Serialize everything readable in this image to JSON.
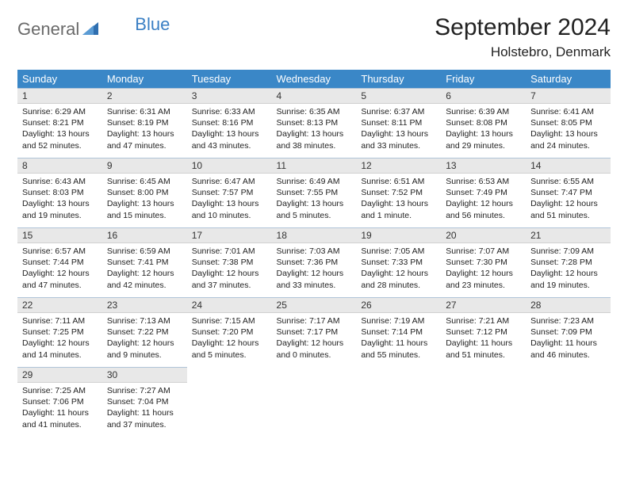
{
  "logo": {
    "part1": "General",
    "part2": "Blue"
  },
  "title": "September 2024",
  "location": "Holstebro, Denmark",
  "colors": {
    "header_bg": "#3a87c7",
    "header_fg": "#ffffff",
    "daynum_bg": "#e8e8e8",
    "row_border": "#b0c4d8",
    "logo_gray": "#6a6a6a",
    "logo_blue": "#3a7fc4"
  },
  "weekdays": [
    "Sunday",
    "Monday",
    "Tuesday",
    "Wednesday",
    "Thursday",
    "Friday",
    "Saturday"
  ],
  "days": [
    {
      "n": "1",
      "sunrise": "Sunrise: 6:29 AM",
      "sunset": "Sunset: 8:21 PM",
      "day1": "Daylight: 13 hours",
      "day2": "and 52 minutes."
    },
    {
      "n": "2",
      "sunrise": "Sunrise: 6:31 AM",
      "sunset": "Sunset: 8:19 PM",
      "day1": "Daylight: 13 hours",
      "day2": "and 47 minutes."
    },
    {
      "n": "3",
      "sunrise": "Sunrise: 6:33 AM",
      "sunset": "Sunset: 8:16 PM",
      "day1": "Daylight: 13 hours",
      "day2": "and 43 minutes."
    },
    {
      "n": "4",
      "sunrise": "Sunrise: 6:35 AM",
      "sunset": "Sunset: 8:13 PM",
      "day1": "Daylight: 13 hours",
      "day2": "and 38 minutes."
    },
    {
      "n": "5",
      "sunrise": "Sunrise: 6:37 AM",
      "sunset": "Sunset: 8:11 PM",
      "day1": "Daylight: 13 hours",
      "day2": "and 33 minutes."
    },
    {
      "n": "6",
      "sunrise": "Sunrise: 6:39 AM",
      "sunset": "Sunset: 8:08 PM",
      "day1": "Daylight: 13 hours",
      "day2": "and 29 minutes."
    },
    {
      "n": "7",
      "sunrise": "Sunrise: 6:41 AM",
      "sunset": "Sunset: 8:05 PM",
      "day1": "Daylight: 13 hours",
      "day2": "and 24 minutes."
    },
    {
      "n": "8",
      "sunrise": "Sunrise: 6:43 AM",
      "sunset": "Sunset: 8:03 PM",
      "day1": "Daylight: 13 hours",
      "day2": "and 19 minutes."
    },
    {
      "n": "9",
      "sunrise": "Sunrise: 6:45 AM",
      "sunset": "Sunset: 8:00 PM",
      "day1": "Daylight: 13 hours",
      "day2": "and 15 minutes."
    },
    {
      "n": "10",
      "sunrise": "Sunrise: 6:47 AM",
      "sunset": "Sunset: 7:57 PM",
      "day1": "Daylight: 13 hours",
      "day2": "and 10 minutes."
    },
    {
      "n": "11",
      "sunrise": "Sunrise: 6:49 AM",
      "sunset": "Sunset: 7:55 PM",
      "day1": "Daylight: 13 hours",
      "day2": "and 5 minutes."
    },
    {
      "n": "12",
      "sunrise": "Sunrise: 6:51 AM",
      "sunset": "Sunset: 7:52 PM",
      "day1": "Daylight: 13 hours",
      "day2": "and 1 minute."
    },
    {
      "n": "13",
      "sunrise": "Sunrise: 6:53 AM",
      "sunset": "Sunset: 7:49 PM",
      "day1": "Daylight: 12 hours",
      "day2": "and 56 minutes."
    },
    {
      "n": "14",
      "sunrise": "Sunrise: 6:55 AM",
      "sunset": "Sunset: 7:47 PM",
      "day1": "Daylight: 12 hours",
      "day2": "and 51 minutes."
    },
    {
      "n": "15",
      "sunrise": "Sunrise: 6:57 AM",
      "sunset": "Sunset: 7:44 PM",
      "day1": "Daylight: 12 hours",
      "day2": "and 47 minutes."
    },
    {
      "n": "16",
      "sunrise": "Sunrise: 6:59 AM",
      "sunset": "Sunset: 7:41 PM",
      "day1": "Daylight: 12 hours",
      "day2": "and 42 minutes."
    },
    {
      "n": "17",
      "sunrise": "Sunrise: 7:01 AM",
      "sunset": "Sunset: 7:38 PM",
      "day1": "Daylight: 12 hours",
      "day2": "and 37 minutes."
    },
    {
      "n": "18",
      "sunrise": "Sunrise: 7:03 AM",
      "sunset": "Sunset: 7:36 PM",
      "day1": "Daylight: 12 hours",
      "day2": "and 33 minutes."
    },
    {
      "n": "19",
      "sunrise": "Sunrise: 7:05 AM",
      "sunset": "Sunset: 7:33 PM",
      "day1": "Daylight: 12 hours",
      "day2": "and 28 minutes."
    },
    {
      "n": "20",
      "sunrise": "Sunrise: 7:07 AM",
      "sunset": "Sunset: 7:30 PM",
      "day1": "Daylight: 12 hours",
      "day2": "and 23 minutes."
    },
    {
      "n": "21",
      "sunrise": "Sunrise: 7:09 AM",
      "sunset": "Sunset: 7:28 PM",
      "day1": "Daylight: 12 hours",
      "day2": "and 19 minutes."
    },
    {
      "n": "22",
      "sunrise": "Sunrise: 7:11 AM",
      "sunset": "Sunset: 7:25 PM",
      "day1": "Daylight: 12 hours",
      "day2": "and 14 minutes."
    },
    {
      "n": "23",
      "sunrise": "Sunrise: 7:13 AM",
      "sunset": "Sunset: 7:22 PM",
      "day1": "Daylight: 12 hours",
      "day2": "and 9 minutes."
    },
    {
      "n": "24",
      "sunrise": "Sunrise: 7:15 AM",
      "sunset": "Sunset: 7:20 PM",
      "day1": "Daylight: 12 hours",
      "day2": "and 5 minutes."
    },
    {
      "n": "25",
      "sunrise": "Sunrise: 7:17 AM",
      "sunset": "Sunset: 7:17 PM",
      "day1": "Daylight: 12 hours",
      "day2": "and 0 minutes."
    },
    {
      "n": "26",
      "sunrise": "Sunrise: 7:19 AM",
      "sunset": "Sunset: 7:14 PM",
      "day1": "Daylight: 11 hours",
      "day2": "and 55 minutes."
    },
    {
      "n": "27",
      "sunrise": "Sunrise: 7:21 AM",
      "sunset": "Sunset: 7:12 PM",
      "day1": "Daylight: 11 hours",
      "day2": "and 51 minutes."
    },
    {
      "n": "28",
      "sunrise": "Sunrise: 7:23 AM",
      "sunset": "Sunset: 7:09 PM",
      "day1": "Daylight: 11 hours",
      "day2": "and 46 minutes."
    },
    {
      "n": "29",
      "sunrise": "Sunrise: 7:25 AM",
      "sunset": "Sunset: 7:06 PM",
      "day1": "Daylight: 11 hours",
      "day2": "and 41 minutes."
    },
    {
      "n": "30",
      "sunrise": "Sunrise: 7:27 AM",
      "sunset": "Sunset: 7:04 PM",
      "day1": "Daylight: 11 hours",
      "day2": "and 37 minutes."
    }
  ]
}
